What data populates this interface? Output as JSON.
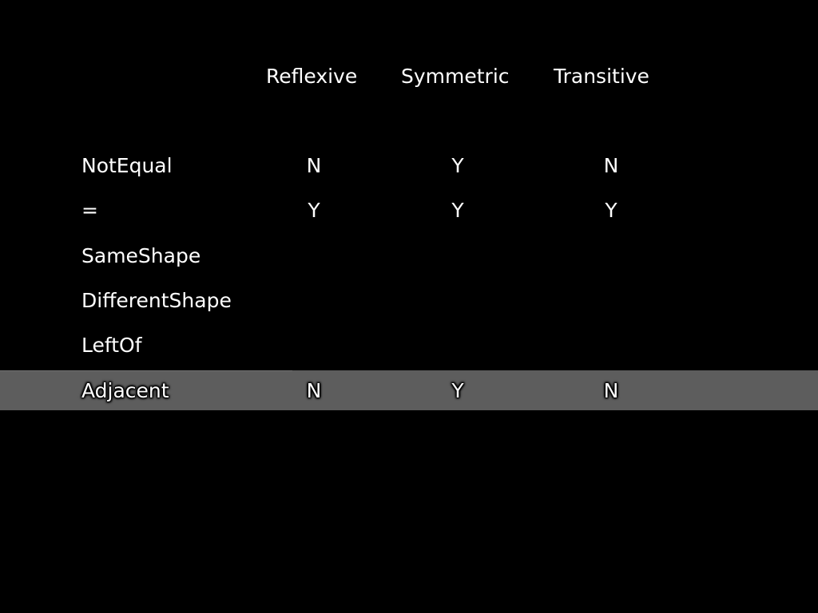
{
  "table": {
    "headers": [
      "Reflexive",
      "Symmetric",
      "Transitive"
    ],
    "rows": [
      {
        "label": "NotEqual",
        "values": [
          "N",
          "Y",
          "N"
        ]
      },
      {
        "label": "=",
        "values": [
          "Y",
          "Y",
          "Y"
        ]
      },
      {
        "label": "SameShape",
        "values": [
          "",
          "",
          ""
        ]
      },
      {
        "label": "DifferentShape",
        "values": [
          "",
          "",
          ""
        ]
      },
      {
        "label": "LeftOf",
        "values": [
          "",
          "",
          ""
        ]
      },
      {
        "label": "Adjacent",
        "values": [
          "N",
          "Y",
          "N"
        ]
      }
    ],
    "highlighted_row": 5
  },
  "colors": {
    "background": "#000000",
    "text": "#ffffff",
    "highlight": "#5d5d5d"
  }
}
